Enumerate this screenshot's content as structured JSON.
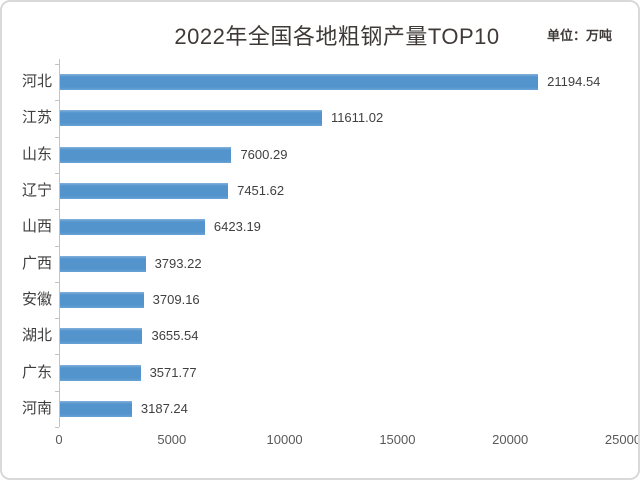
{
  "chart_data": {
    "type": "bar",
    "orientation": "horizontal",
    "title": "2022年全国各地粗钢产量TOP10",
    "unit_label": "单位：万吨",
    "categories": [
      "河北",
      "江苏",
      "山东",
      "辽宁",
      "山西",
      "广西",
      "安徽",
      "湖北",
      "广东",
      "河南"
    ],
    "values": [
      21194.54,
      11611.02,
      7600.29,
      7451.62,
      6423.19,
      3793.22,
      3709.16,
      3655.54,
      3571.77,
      3187.24
    ],
    "value_labels": [
      "21194.54",
      "11611.02",
      "7600.29",
      "7451.62",
      "6423.19",
      "3793.22",
      "3709.16",
      "3655.54",
      "3571.77",
      "3187.24"
    ],
    "xlim": [
      0,
      25000
    ],
    "xtick_labels": [
      "0",
      "5000",
      "10000",
      "15000",
      "20000",
      "25000"
    ],
    "grid": false,
    "legend": "none",
    "bar_color": "#5494cd",
    "axis_color": "#c3c3c3",
    "title_color": "#3f3a38",
    "value_label_color": "#404040",
    "tick_label_color": "#595959"
  }
}
